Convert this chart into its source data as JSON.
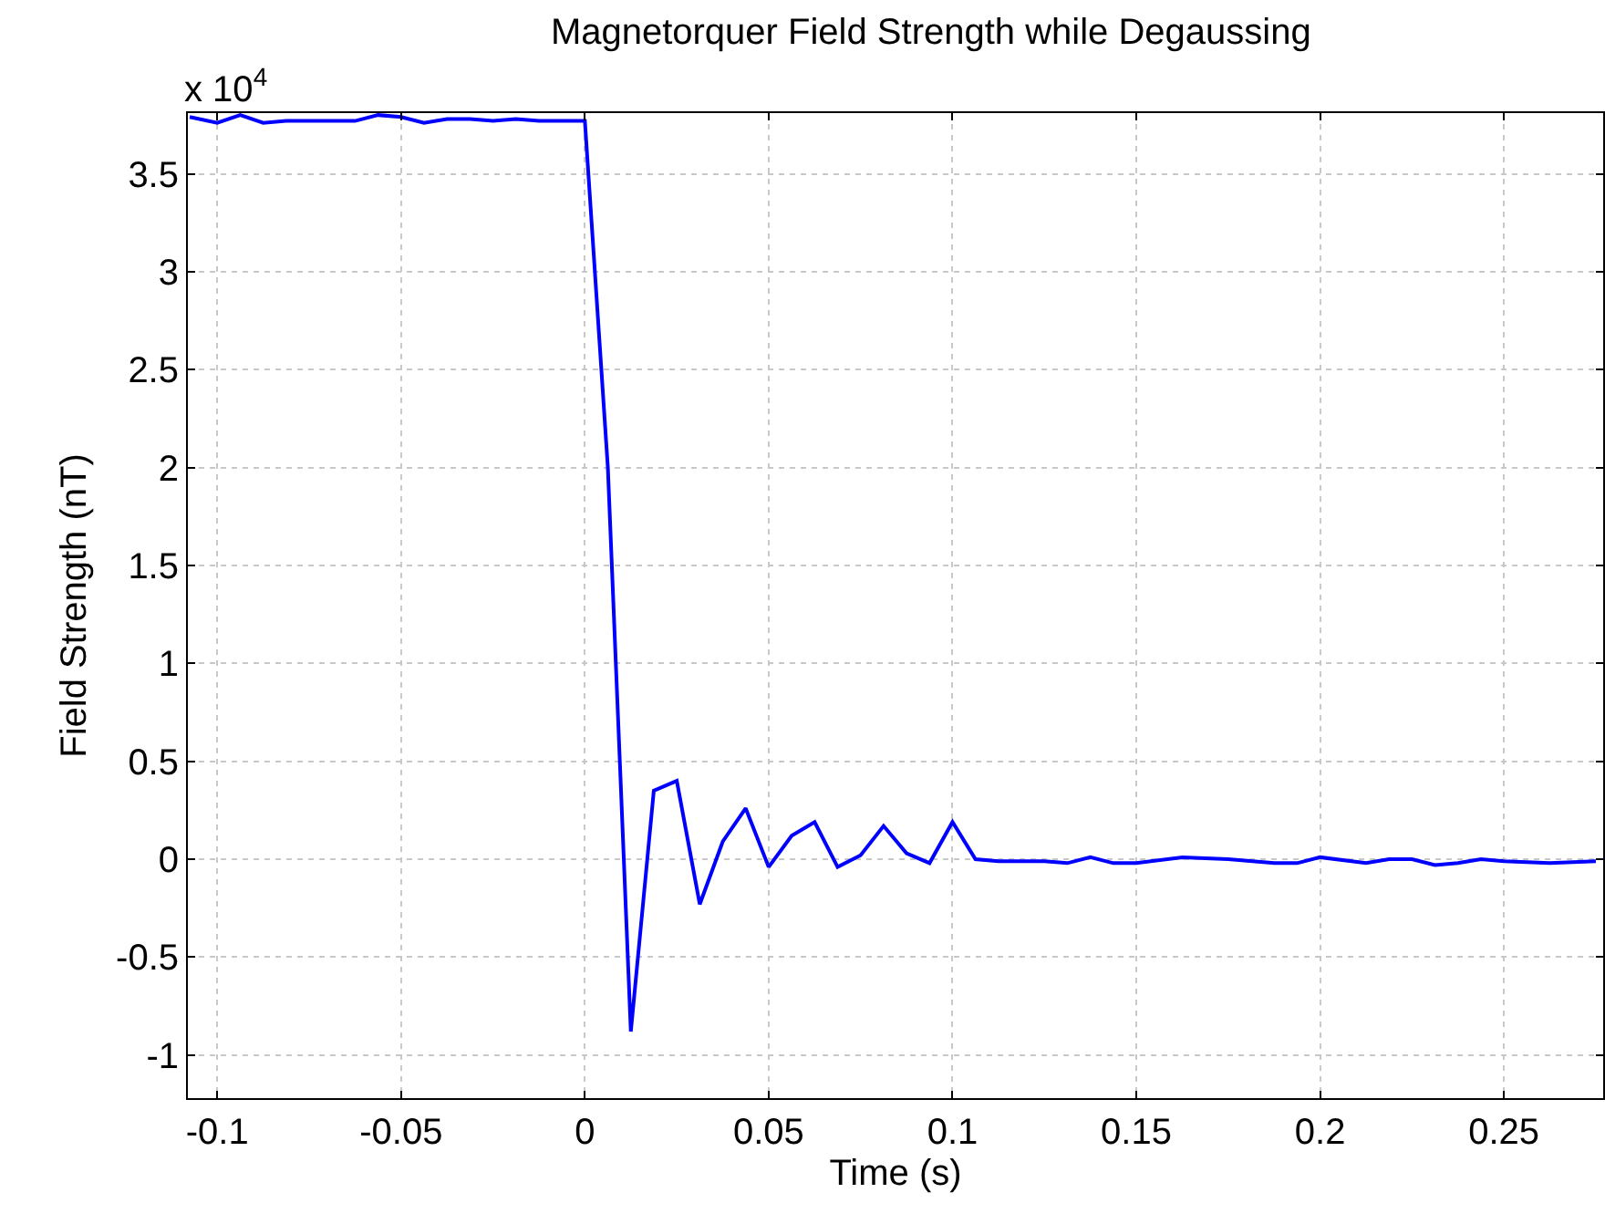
{
  "chart_data": {
    "type": "line",
    "title": "Magnetorquer Field Strength while Degaussing",
    "xlabel": "Time (s)",
    "ylabel": "Field Strength (nT)",
    "annotations": [
      "x 10$^{4}$"
    ],
    "x": [
      -0.1075,
      -0.1,
      -0.09375,
      -0.0875,
      -0.08125,
      -0.0625,
      -0.05625,
      -0.05,
      -0.04375,
      -0.0375,
      -0.03125,
      -0.025,
      -0.01875,
      -0.0125,
      0,
      0.00625,
      0.0125,
      0.01875,
      0.025,
      0.03125,
      0.0375,
      0.04375,
      0.05,
      0.05625,
      0.0625,
      0.06875,
      0.075,
      0.08125,
      0.0875,
      0.09375,
      0.1,
      0.10625,
      0.1125,
      0.125,
      0.13125,
      0.1375,
      0.14375,
      0.15,
      0.1625,
      0.175,
      0.1875,
      0.19375,
      0.2,
      0.2125,
      0.21875,
      0.225,
      0.23125,
      0.2375,
      0.24375,
      0.25,
      0.2625,
      0.275
    ],
    "series": [
      {
        "color": "#0000ff",
        "values": [
          3.79,
          3.76,
          3.8,
          3.76,
          3.77,
          3.77,
          3.8,
          3.79,
          3.76,
          3.78,
          3.78,
          3.77,
          3.78,
          3.77,
          3.77,
          2.0,
          -0.88,
          0.35,
          0.4,
          -0.23,
          0.09,
          0.26,
          -0.04,
          0.12,
          0.19,
          -0.04,
          0.02,
          0.17,
          0.03,
          -0.02,
          0.19,
          0.0,
          -0.01,
          -0.01,
          -0.02,
          0.01,
          -0.02,
          -0.02,
          0.01,
          0.0,
          -0.02,
          -0.02,
          0.01,
          -0.02,
          0.0,
          0.0,
          -0.03,
          -0.02,
          0.0,
          -0.01,
          -0.02,
          -0.01
        ]
      }
    ],
    "xlim": [
      -0.108,
      0.277
    ],
    "ylim": [
      -1.22,
      3.81
    ],
    "xticks": [
      -0.1,
      -0.05,
      0,
      0.05,
      0.1,
      0.15,
      0.2,
      0.25
    ],
    "yticks": [
      -1,
      -0.5,
      0,
      0.5,
      1,
      1.5,
      2,
      2.5,
      3,
      3.5
    ],
    "grid": true,
    "marker": "none",
    "line_style": "solid"
  }
}
